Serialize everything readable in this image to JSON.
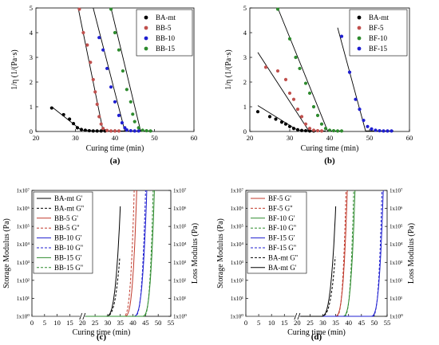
{
  "chart_data": [
    {
      "type": "scatter",
      "panel_label": "(a)",
      "xlabel": "Curing time (min)",
      "ylabel": "1/η (1/(Pa·s)",
      "xlim": [
        20,
        60
      ],
      "ylim": [
        0,
        5
      ],
      "xticks": [
        20,
        30,
        40,
        50,
        60
      ],
      "yticks": [
        0,
        1,
        2,
        3,
        4,
        5
      ],
      "legend_position": "top-right",
      "series": [
        {
          "name": "BA-mt",
          "color": "#000000",
          "points": [
            [
              24,
              0.95
            ],
            [
              27,
              0.68
            ],
            [
              28.5,
              0.5
            ],
            [
              29.5,
              0.32
            ],
            [
              30.5,
              0.15
            ],
            [
              31.5,
              0.08
            ],
            [
              32.5,
              0.05
            ],
            [
              33.5,
              0.03
            ],
            [
              34.5,
              0.02
            ],
            [
              35.5,
              0.02
            ],
            [
              36.5,
              0.02
            ],
            [
              37.5,
              0.02
            ]
          ],
          "fit": [
            [
              24,
              1.0
            ],
            [
              31.5,
              0.05
            ],
            [
              38,
              0.01
            ]
          ]
        },
        {
          "name": "BB-5",
          "color": "#c0504d",
          "points": [
            [
              31,
              4.95
            ],
            [
              32,
              4.0
            ],
            [
              33,
              3.5
            ],
            [
              33.8,
              2.8
            ],
            [
              34.5,
              2.1
            ],
            [
              35,
              1.6
            ],
            [
              35.5,
              1.1
            ],
            [
              36,
              0.6
            ],
            [
              36.5,
              0.3
            ],
            [
              37,
              0.12
            ],
            [
              38,
              0.04
            ],
            [
              39,
              0.02
            ],
            [
              40,
              0.02
            ],
            [
              41,
              0.02
            ]
          ],
          "fit": [
            [
              30.7,
              5.0
            ],
            [
              37,
              0.02
            ],
            [
              43,
              0.02
            ]
          ]
        },
        {
          "name": "BB-10",
          "color": "#1f1fd0",
          "points": [
            [
              36,
              3.8
            ],
            [
              37,
              3.3
            ],
            [
              38,
              2.55
            ],
            [
              39,
              1.8
            ],
            [
              40,
              1.2
            ],
            [
              41,
              0.65
            ],
            [
              41.8,
              0.35
            ],
            [
              42.5,
              0.15
            ],
            [
              43,
              0.06
            ],
            [
              44,
              0.03
            ],
            [
              45,
              0.02
            ],
            [
              46,
              0.02
            ]
          ],
          "fit": [
            [
              34.5,
              5.0
            ],
            [
              42.5,
              0.02
            ],
            [
              47,
              0.02
            ]
          ]
        },
        {
          "name": "BB-15",
          "color": "#2e8b2e",
          "points": [
            [
              39,
              4.95
            ],
            [
              40,
              4.0
            ],
            [
              41,
              3.3
            ],
            [
              42,
              2.45
            ],
            [
              43,
              1.7
            ],
            [
              44,
              1.2
            ],
            [
              44.5,
              0.7
            ],
            [
              45,
              0.4
            ],
            [
              46,
              0.15
            ],
            [
              47,
              0.05
            ],
            [
              48,
              0.03
            ],
            [
              49,
              0.02
            ]
          ],
          "fit": [
            [
              39,
              5.0
            ],
            [
              46.5,
              0.02
            ],
            [
              49.5,
              0.02
            ]
          ]
        }
      ]
    },
    {
      "type": "scatter",
      "panel_label": "(b)",
      "xlabel": "Curing time (min)",
      "ylabel": "1/η (1/(Pa·s)",
      "xlim": [
        20,
        60
      ],
      "ylim": [
        0,
        5
      ],
      "xticks": [
        20,
        30,
        40,
        50,
        60
      ],
      "yticks": [
        0,
        1,
        2,
        3,
        4,
        5
      ],
      "legend_position": "top-right",
      "series": [
        {
          "name": "BA-mt",
          "color": "#000000",
          "points": [
            [
              22,
              0.8
            ],
            [
              25,
              0.6
            ],
            [
              26.5,
              0.5
            ],
            [
              28,
              0.38
            ],
            [
              29,
              0.3
            ],
            [
              30,
              0.2
            ],
            [
              31,
              0.12
            ],
            [
              32,
              0.07
            ],
            [
              33,
              0.04
            ],
            [
              34,
              0.03
            ],
            [
              35,
              0.02
            ],
            [
              36,
              0.02
            ]
          ],
          "fit": [
            [
              22,
              1.05
            ],
            [
              32,
              0.05
            ],
            [
              37,
              0.02
            ]
          ]
        },
        {
          "name": "BF-5",
          "color": "#c0504d",
          "points": [
            [
              24,
              2.6
            ],
            [
              27,
              2.45
            ],
            [
              29,
              2.1
            ],
            [
              30,
              1.55
            ],
            [
              31,
              1.3
            ],
            [
              32,
              0.9
            ],
            [
              33,
              0.6
            ],
            [
              34,
              0.3
            ],
            [
              35,
              0.12
            ],
            [
              36,
              0.05
            ],
            [
              37,
              0.03
            ],
            [
              38,
              0.02
            ]
          ],
          "fit": [
            [
              22,
              3.2
            ],
            [
              34.8,
              0.02
            ],
            [
              39,
              0.02
            ]
          ]
        },
        {
          "name": "BF-10",
          "color": "#2e8b2e",
          "points": [
            [
              27,
              4.95
            ],
            [
              30,
              3.75
            ],
            [
              31.5,
              3.0
            ],
            [
              32.5,
              2.55
            ],
            [
              34,
              1.95
            ],
            [
              35,
              1.55
            ],
            [
              36,
              1.0
            ],
            [
              37,
              0.65
            ],
            [
              38,
              0.3
            ],
            [
              39,
              0.12
            ],
            [
              40,
              0.05
            ],
            [
              41,
              0.03
            ],
            [
              42,
              0.02
            ],
            [
              43,
              0.02
            ]
          ],
          "fit": [
            [
              27,
              5.0
            ],
            [
              39.5,
              0.02
            ],
            [
              43,
              0.02
            ]
          ]
        },
        {
          "name": "BF-15",
          "color": "#1f1fd0",
          "points": [
            [
              43,
              3.85
            ],
            [
              45,
              2.4
            ],
            [
              46.5,
              1.3
            ],
            [
              47.5,
              0.9
            ],
            [
              48.5,
              0.45
            ],
            [
              49.5,
              0.2
            ],
            [
              50.5,
              0.1
            ],
            [
              51.5,
              0.05
            ],
            [
              52.5,
              0.03
            ],
            [
              53.5,
              0.02
            ],
            [
              54.5,
              0.02
            ],
            [
              55.5,
              0.02
            ]
          ],
          "fit": [
            [
              42,
              4.2
            ],
            [
              49,
              0.02
            ],
            [
              56,
              0.02
            ]
          ]
        }
      ]
    },
    {
      "type": "line",
      "panel_label": "(c)",
      "xlabel": "Curing time (min)",
      "ylabel": "Storage Modulus (Pa)",
      "ylabel_right": "Loss Modulus (Pa)",
      "xlim": [
        0,
        55
      ],
      "yscale": "log",
      "ylim": [
        1,
        10000000
      ],
      "xticks": [
        0,
        5,
        10,
        15,
        20,
        25,
        30,
        35,
        40,
        45,
        50,
        55
      ],
      "ytick_labels": [
        "1x10⁰",
        "1x10¹",
        "1x10²",
        "1x10³",
        "1x10⁴",
        "1x10⁵",
        "1x10⁶",
        "1x10⁷"
      ],
      "axis_break_at": 20,
      "legend_position": "top-left",
      "series": [
        {
          "name": "BA-mt G'",
          "color": "#000000",
          "dash": false,
          "onset": 29,
          "end": 35,
          "top": 1300000
        },
        {
          "name": "BA-mt G''",
          "color": "#000000",
          "dash": true,
          "onset": 29,
          "end": 34.8,
          "top": 2000
        },
        {
          "name": "BB-5 G'",
          "color": "#c0392b",
          "dash": false,
          "onset": 36.5,
          "end": 41.5,
          "top": 10000000
        },
        {
          "name": "BB-5 G''",
          "color": "#c0392b",
          "dash": true,
          "onset": 36,
          "end": 40.5,
          "top": 10000000
        },
        {
          "name": "BB-10 G'",
          "color": "#1f1fd0",
          "dash": false,
          "onset": 40,
          "end": 45.5,
          "top": 10000000
        },
        {
          "name": "BB-10 G''",
          "color": "#1f1fd0",
          "dash": true,
          "onset": 40.5,
          "end": 45,
          "top": 10000000
        },
        {
          "name": "BB-15 G'",
          "color": "#2e8b2e",
          "dash": false,
          "onset": 43.5,
          "end": 48.5,
          "top": 10000000
        },
        {
          "name": "BB-15 G''",
          "color": "#2e8b2e",
          "dash": true,
          "onset": 44,
          "end": 48,
          "top": 10000000
        }
      ]
    },
    {
      "type": "line",
      "panel_label": "(d)",
      "xlabel": "Curing time (min)",
      "ylabel": "Storage Modulus (Pa)",
      "ylabel_right": "Loss Modulus (Pa)",
      "xlim": [
        0,
        55
      ],
      "yscale": "log",
      "ylim": [
        1,
        10000000
      ],
      "xticks": [
        0,
        5,
        10,
        15,
        20,
        25,
        30,
        35,
        40,
        45,
        50,
        55
      ],
      "ytick_labels": [
        "1x10⁰",
        "1x10¹",
        "1x10²",
        "1x10³",
        "1x10⁴",
        "1x10⁵",
        "1x10⁶",
        "1x10⁷"
      ],
      "axis_break_at": 20,
      "legend_position": "top-left",
      "series": [
        {
          "name": "BF-5 G'",
          "color": "#c0392b",
          "dash": false,
          "onset": 34.5,
          "end": 39.5,
          "top": 10000000
        },
        {
          "name": "BF-5 G''",
          "color": "#c0392b",
          "dash": true,
          "onset": 35,
          "end": 39,
          "top": 10000000
        },
        {
          "name": "BF-10 G'",
          "color": "#2e8b2e",
          "dash": false,
          "onset": 37.5,
          "end": 42.5,
          "top": 10000000
        },
        {
          "name": "BF-10 G''",
          "color": "#2e8b2e",
          "dash": true,
          "onset": 38,
          "end": 42,
          "top": 10000000
        },
        {
          "name": "BF-15 G'",
          "color": "#1f1fd0",
          "dash": false,
          "onset": 48.5,
          "end": 53.5,
          "top": 10000000
        },
        {
          "name": "BF-15 G''",
          "color": "#1f1fd0",
          "dash": true,
          "onset": 49,
          "end": 53,
          "top": 10000000
        },
        {
          "name": "BA-mt G''",
          "color": "#000000",
          "dash": true,
          "onset": 29,
          "end": 34.8,
          "top": 2000
        },
        {
          "name": "BA-mt G'",
          "color": "#000000",
          "dash": false,
          "onset": 29,
          "end": 35,
          "top": 1300000
        }
      ]
    }
  ]
}
